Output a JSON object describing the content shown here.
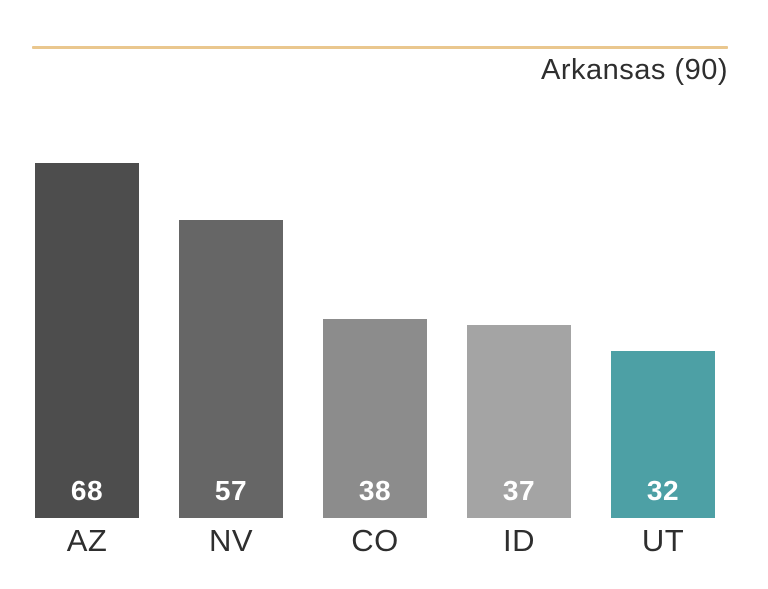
{
  "chart_data": {
    "type": "bar",
    "categories": [
      "AZ",
      "NV",
      "CO",
      "ID",
      "UT"
    ],
    "values": [
      68,
      57,
      38,
      37,
      32
    ],
    "bar_colors": [
      "#4D4D4D",
      "#666666",
      "#8C8C8C",
      "#A4A4A4",
      "#4DA0A5"
    ],
    "value_label_color": "#FFFFFF",
    "category_label_color": "#2E2E2E",
    "title": "",
    "xlabel": "",
    "ylabel": "",
    "ylim": [
      0,
      90
    ],
    "grid": false,
    "legend": false,
    "reference_line": {
      "label": "Arkansas (90)",
      "value": 90,
      "color": "#EAC78E"
    }
  }
}
